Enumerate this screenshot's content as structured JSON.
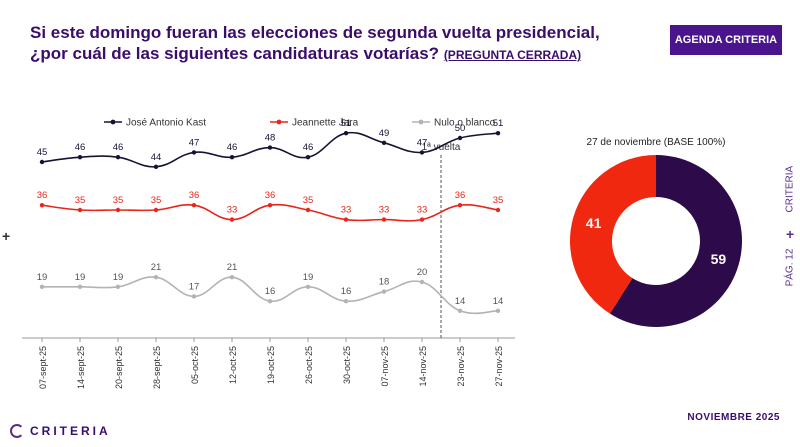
{
  "header": {
    "title": "Si este domingo fueran las elecciones de segunda vuelta presidencial, ¿por cuál de las siguientes candidaturas votarías?",
    "title_paren": "(PREGUNTA CERRADA)",
    "badge": "AGENDA CRITERIA"
  },
  "side": {
    "brand": "CRITERIA",
    "page": "PÁG. 12"
  },
  "footer": {
    "logo": "CRITERIA",
    "month": "NOVIEMBRE 2025"
  },
  "chart_data": [
    {
      "type": "line",
      "categories": [
        "07-sept-25",
        "14-sept-25",
        "20-sept-25",
        "28-sept-25",
        "05-oct-25",
        "12-oct-25",
        "19-oct-25",
        "26-oct-25",
        "30-oct-25",
        "07-nov-25",
        "14-nov-25",
        "23-nov-25",
        "27-nov-25"
      ],
      "series": [
        {
          "name": "José Antonio Kast",
          "color": "#1a1033",
          "values": [
            45,
            46,
            46,
            44,
            47,
            46,
            48,
            46,
            51,
            49,
            47,
            50,
            51
          ]
        },
        {
          "name": "Jeannette Jara",
          "color": "#e8251a",
          "values": [
            36,
            35,
            35,
            35,
            36,
            33,
            36,
            35,
            33,
            33,
            33,
            36,
            35
          ]
        },
        {
          "name": "Nulo o blanco",
          "color": "#b3b3b3",
          "values": [
            19,
            19,
            19,
            21,
            17,
            21,
            16,
            19,
            16,
            18,
            20,
            14,
            14
          ]
        }
      ],
      "annotation": {
        "label": "1ª vuelta",
        "after_category": "14-nov-25"
      }
    },
    {
      "type": "pie",
      "title": "27 de noviembre (BASE 100%)",
      "slices": [
        {
          "label": "59",
          "value": 59,
          "color": "#2d0a4a"
        },
        {
          "label": "41",
          "value": 41,
          "color": "#f0280f"
        }
      ]
    }
  ]
}
